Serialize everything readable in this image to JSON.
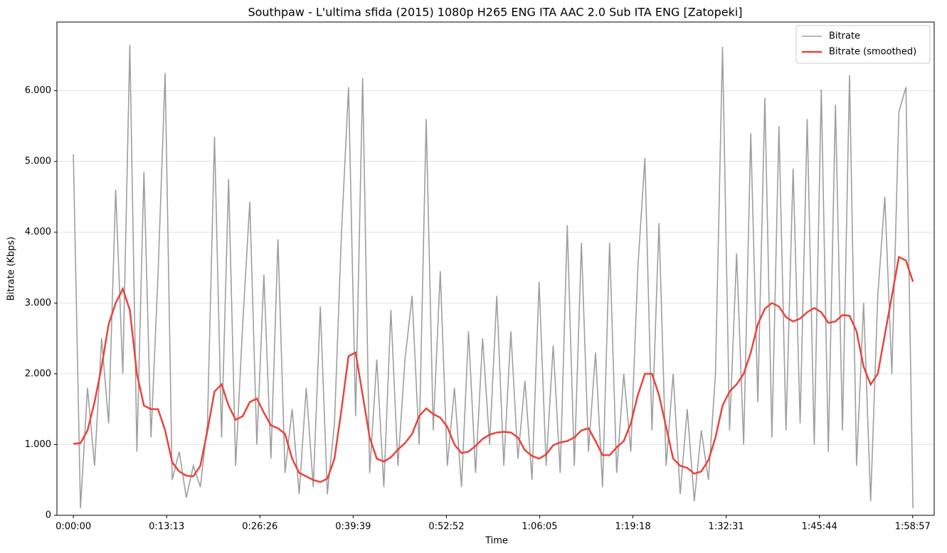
{
  "chart_data": {
    "type": "line",
    "title": "Southpaw - L'ultima sfida (2015) 1080p H265 ENG ITA AAC 2.0 Sub ITA ENG [Zatopeki]",
    "x_label": "Time",
    "y_label": "Bitrate (Kbps)",
    "x": [
      0,
      60,
      120,
      180,
      240,
      300,
      360,
      420,
      480,
      540,
      600,
      660,
      720,
      780,
      840,
      900,
      960,
      1020,
      1080,
      1140,
      1200,
      1260,
      1320,
      1380,
      1440,
      1500,
      1560,
      1620,
      1680,
      1740,
      1800,
      1860,
      1920,
      1980,
      2040,
      2100,
      2160,
      2220,
      2280,
      2340,
      2400,
      2460,
      2520,
      2580,
      2640,
      2700,
      2760,
      2820,
      2880,
      2940,
      3000,
      3060,
      3120,
      3180,
      3240,
      3300,
      3360,
      3420,
      3480,
      3540,
      3600,
      3660,
      3720,
      3780,
      3840,
      3900,
      3960,
      4020,
      4080,
      4140,
      4200,
      4260,
      4320,
      4380,
      4440,
      4500,
      4560,
      4620,
      4680,
      4740,
      4800,
      4860,
      4920,
      4980,
      5040,
      5100,
      5160,
      5220,
      5280,
      5340,
      5400,
      5460,
      5520,
      5580,
      5640,
      5700,
      5760,
      5820,
      5880,
      5940,
      6000,
      6060,
      6120,
      6180,
      6240,
      6300,
      6360,
      6420,
      6480,
      6540,
      6600,
      6660,
      6720,
      6780,
      6840,
      6900,
      6960,
      7020,
      7080,
      7140
    ],
    "series": [
      {
        "name": "Bitrate",
        "color": "#9e9e9e",
        "values": [
          5100,
          100,
          1800,
          700,
          2500,
          1300,
          4600,
          2000,
          6650,
          900,
          4850,
          1100,
          3400,
          6250,
          500,
          900,
          250,
          700,
          400,
          1300,
          5350,
          1100,
          4750,
          700,
          2700,
          4430,
          1000,
          3400,
          800,
          3900,
          600,
          1500,
          300,
          1800,
          400,
          2950,
          300,
          1300,
          4000,
          6050,
          1400,
          6180,
          600,
          2200,
          400,
          2900,
          700,
          2200,
          3100,
          1000,
          5600,
          1200,
          3450,
          700,
          1800,
          400,
          2600,
          600,
          2500,
          1000,
          3100,
          700,
          2600,
          800,
          1900,
          500,
          3300,
          700,
          2400,
          600,
          4100,
          700,
          3850,
          900,
          2300,
          400,
          3850,
          600,
          2000,
          900,
          3500,
          5050,
          1200,
          4130,
          700,
          2000,
          300,
          1500,
          200,
          1200,
          500,
          2000,
          6620,
          1200,
          3700,
          1000,
          5400,
          1600,
          5900,
          1100,
          5500,
          1200,
          4900,
          1300,
          5600,
          1000,
          6020,
          900,
          5800,
          1200,
          6220,
          700,
          3000,
          200,
          3100,
          4500,
          2000,
          5700,
          6050,
          100
        ]
      },
      {
        "name": "Bitrate (smoothed)",
        "color": "#e8453c",
        "values": [
          1010,
          1020,
          1200,
          1600,
          2100,
          2700,
          3000,
          3200,
          2900,
          2000,
          1550,
          1500,
          1500,
          1200,
          750,
          620,
          560,
          550,
          700,
          1200,
          1750,
          1850,
          1550,
          1350,
          1400,
          1600,
          1650,
          1450,
          1270,
          1230,
          1150,
          800,
          600,
          550,
          500,
          470,
          520,
          800,
          1500,
          2250,
          2300,
          1700,
          1100,
          800,
          760,
          820,
          930,
          1020,
          1150,
          1400,
          1510,
          1430,
          1380,
          1250,
          1000,
          880,
          900,
          980,
          1080,
          1140,
          1170,
          1180,
          1170,
          1100,
          920,
          840,
          800,
          860,
          990,
          1030,
          1050,
          1100,
          1200,
          1230,
          1050,
          850,
          850,
          960,
          1050,
          1300,
          1700,
          2000,
          2000,
          1700,
          1250,
          800,
          700,
          670,
          590,
          620,
          780,
          1100,
          1550,
          1750,
          1850,
          2000,
          2300,
          2700,
          2920,
          3000,
          2950,
          2800,
          2740,
          2780,
          2870,
          2930,
          2870,
          2720,
          2740,
          2830,
          2820,
          2600,
          2100,
          1850,
          2000,
          2550,
          3100,
          3650,
          3600,
          3300
        ]
      }
    ],
    "xlim": [
      -140,
      7320
    ],
    "ylim": [
      0,
      6970
    ],
    "xticks": [
      {
        "value": 0,
        "label": "0:00:00"
      },
      {
        "value": 793,
        "label": "0:13:13"
      },
      {
        "value": 1586,
        "label": "0:26:26"
      },
      {
        "value": 2379,
        "label": "0:39:39"
      },
      {
        "value": 3172,
        "label": "0:52:52"
      },
      {
        "value": 3965,
        "label": "1:06:05"
      },
      {
        "value": 4758,
        "label": "1:19:18"
      },
      {
        "value": 5551,
        "label": "1:32:31"
      },
      {
        "value": 6344,
        "label": "1:45:44"
      },
      {
        "value": 7137,
        "label": "1:58:57"
      }
    ],
    "yticks": [
      0,
      {
        "value": 1000,
        "label": "1.000"
      },
      {
        "value": 2000,
        "label": "2.000"
      },
      {
        "value": 3000,
        "label": "3.000"
      },
      {
        "value": 4000,
        "label": "4.000"
      },
      {
        "value": 5000,
        "label": "5.000"
      },
      {
        "value": 6000,
        "label": "6.000"
      }
    ],
    "grid": true,
    "legend": "upper right"
  }
}
